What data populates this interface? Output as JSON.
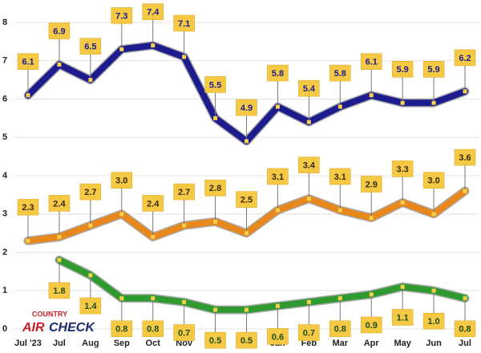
{
  "chart_data": {
    "type": "line",
    "categories": [
      "Jul '23",
      "Jul",
      "Aug",
      "Sep",
      "Oct",
      "Nov",
      null,
      null,
      "Jan",
      "Feb",
      "Mar",
      "Apr",
      "May",
      "Jun",
      "Jul"
    ],
    "ylim": [
      0,
      8
    ],
    "yticks": [
      0,
      1,
      2,
      3,
      4,
      5,
      6,
      7,
      8
    ],
    "grid": true,
    "series": [
      {
        "color": "#1c1c8f",
        "label_color": "#1c1c8f",
        "label_side": "above",
        "values": [
          6.1,
          6.9,
          6.5,
          7.3,
          7.4,
          7.1,
          5.5,
          4.9,
          5.8,
          5.4,
          5.8,
          6.1,
          5.9,
          5.9,
          6.2
        ],
        "value_labels": [
          "6.1",
          "6.9",
          "6.5",
          "7.3",
          "7.4",
          "7.1",
          "5.5",
          "4.9",
          "5.8",
          "5.4",
          "5.8",
          "6.1",
          "5.9",
          "5.9",
          "6.2"
        ]
      },
      {
        "color": "#e8871c",
        "label_color": "#3a2a10",
        "label_side": "above",
        "values": [
          2.3,
          2.4,
          2.7,
          3.0,
          2.4,
          2.7,
          2.8,
          2.5,
          3.1,
          3.4,
          3.1,
          2.9,
          3.3,
          3.0,
          3.6
        ],
        "value_labels": [
          "2.3",
          "2.4",
          "2.7",
          "3.0",
          "2.4",
          "2.7",
          "2.8",
          "2.5",
          "3.1",
          "3.4",
          "3.1",
          "2.9",
          "3.3",
          "3.0",
          "3.6"
        ]
      },
      {
        "color": "#2f9a2f",
        "label_color": "#1e4d1e",
        "label_side": "below",
        "values": [
          null,
          1.8,
          1.4,
          0.8,
          0.8,
          0.7,
          0.5,
          0.5,
          0.6,
          0.7,
          0.8,
          0.9,
          1.1,
          1.0,
          0.8
        ],
        "value_labels": [
          null,
          "1.8",
          "1.4",
          "0.8",
          "0.8",
          "0.7",
          "0.5",
          "0.5",
          "0.6",
          "0.7",
          "0.8",
          "0.9",
          "1.1",
          "1.0",
          "0.8"
        ]
      }
    ]
  },
  "logo": {
    "top": "COUNTRY",
    "left": "AIR",
    "right": "CHECK"
  }
}
